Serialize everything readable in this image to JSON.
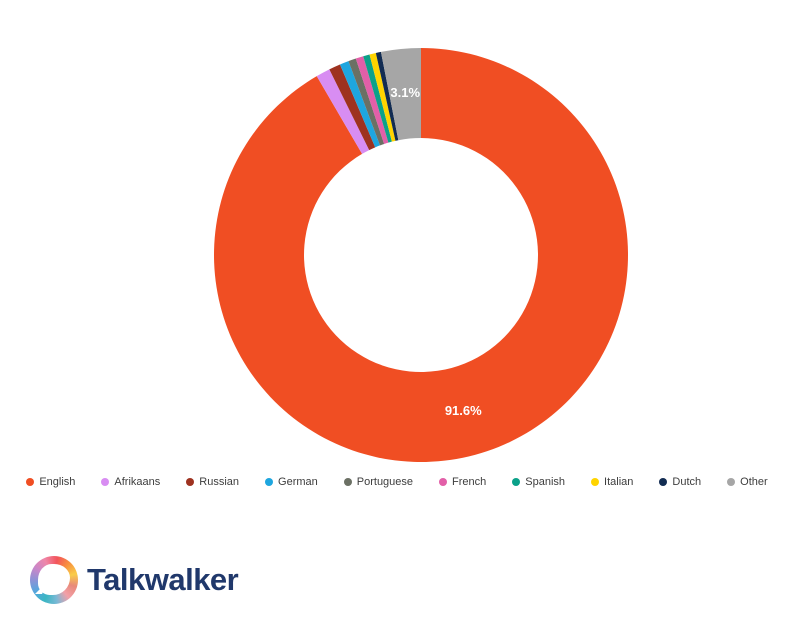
{
  "chart_data": {
    "type": "pie",
    "subtype": "donut",
    "title": "",
    "start_angle_deg": 0,
    "direction": "clockwise",
    "categories": [
      "English",
      "Afrikaans",
      "Russian",
      "German",
      "Portuguese",
      "French",
      "Spanish",
      "Italian",
      "Dutch",
      "Other"
    ],
    "values": [
      91.6,
      1.1,
      0.9,
      0.7,
      0.6,
      0.6,
      0.5,
      0.5,
      0.4,
      3.1
    ],
    "colors": [
      "#f04e23",
      "#d88df2",
      "#9e3220",
      "#1ea6df",
      "#6b7064",
      "#e25fa8",
      "#0ba189",
      "#ffd400",
      "#122c52",
      "#a6a6a6"
    ],
    "inner_radius_ratio": 0.565,
    "background": "#ffffff",
    "data_labels": {
      "min_pct_to_show": 3,
      "color": "#ffffff",
      "visible": [
        {
          "category": "English",
          "text": "91.6%"
        },
        {
          "category": "Other",
          "text": "3.1%"
        }
      ]
    },
    "legend": {
      "position": "bottom",
      "dot_shape": "circle"
    }
  },
  "footer": {
    "brand": "Talkwalker",
    "brand_color": "#20386b",
    "logo_icon": "talkwalker-swirl-icon"
  }
}
